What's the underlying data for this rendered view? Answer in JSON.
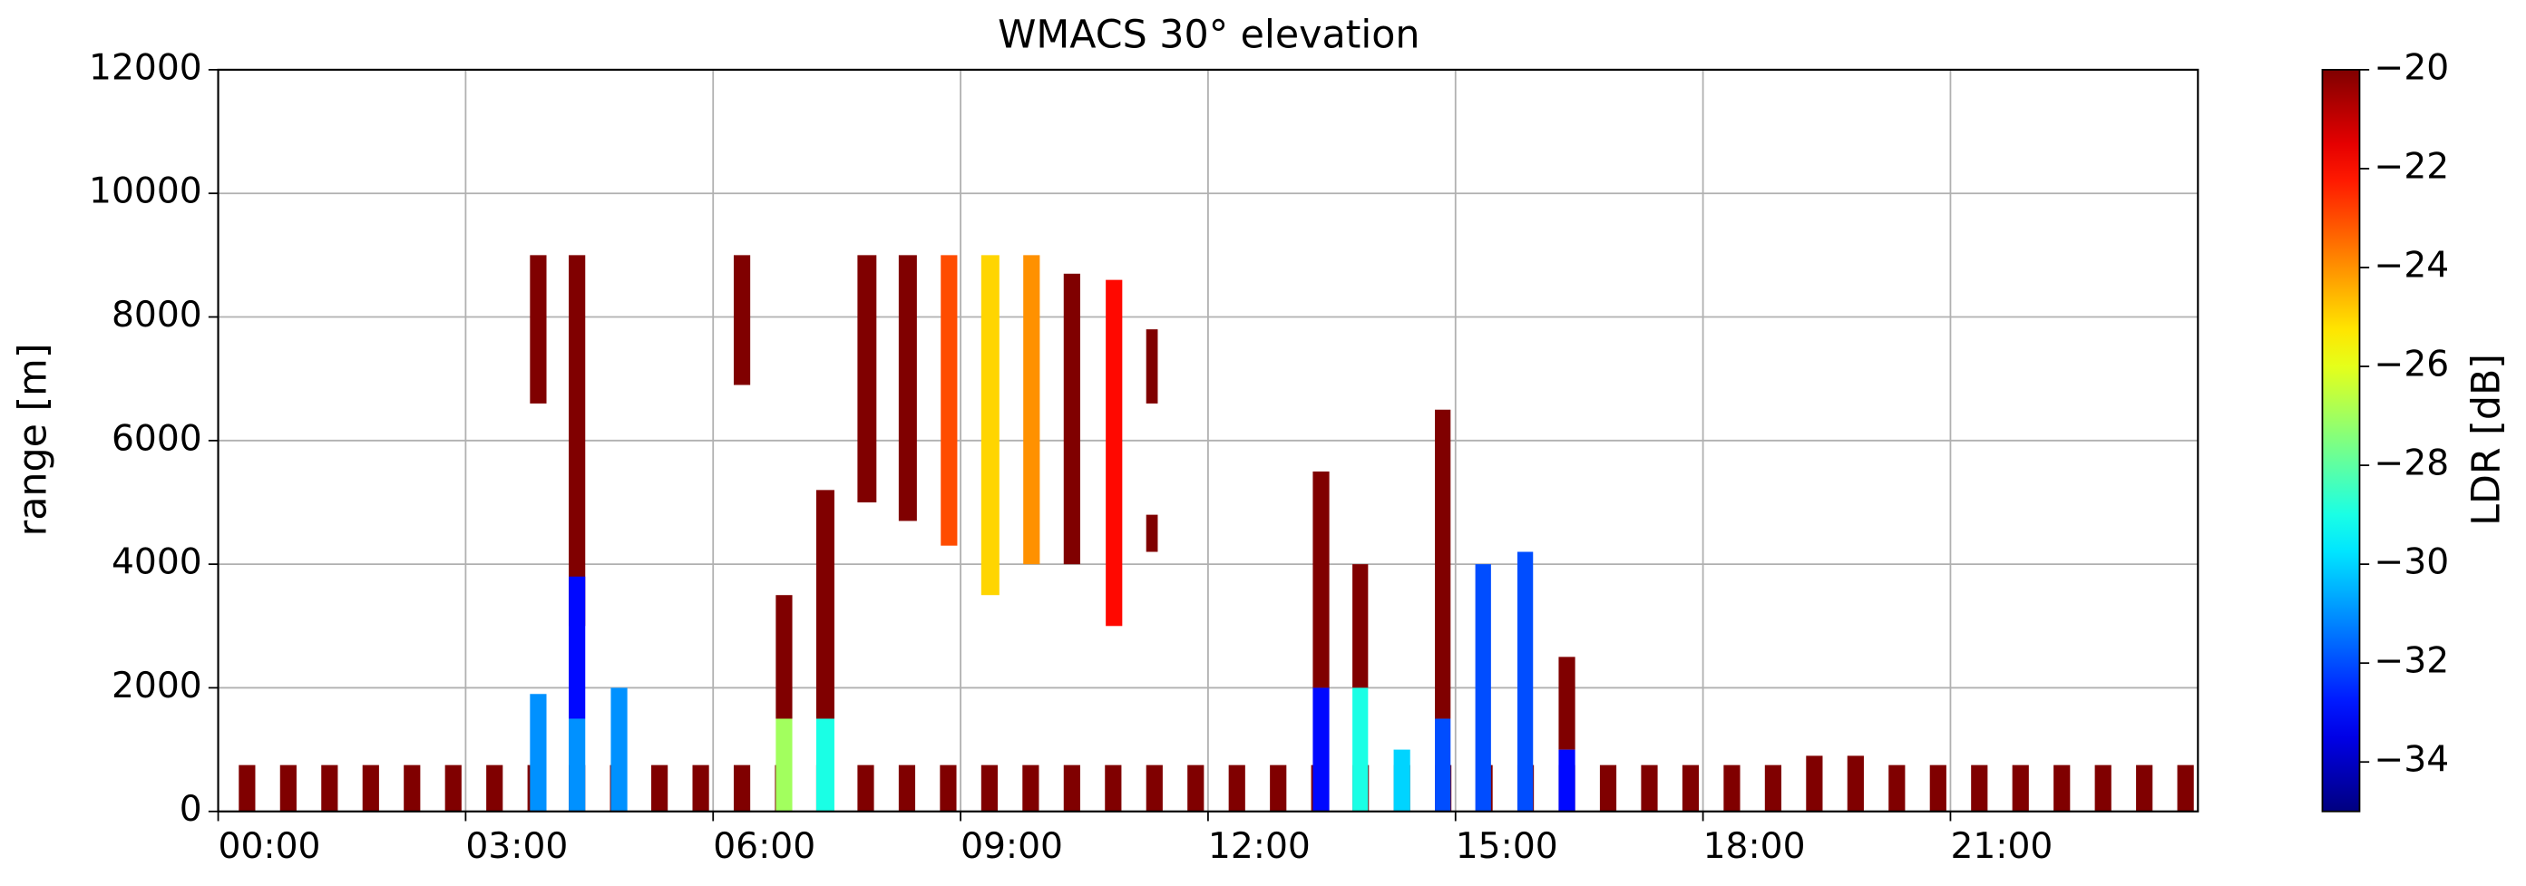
{
  "chart_data": {
    "type": "heatmap",
    "title": "WMACS 30° elevation",
    "y_label": "range [m]",
    "colorbar_label": "LDR [dB]",
    "xlim": [
      0,
      24
    ],
    "ylim": [
      0,
      12000
    ],
    "clim": [
      -35,
      -20
    ],
    "xticks": [
      {
        "value": 0,
        "label": "00:00"
      },
      {
        "value": 3,
        "label": "03:00"
      },
      {
        "value": 6,
        "label": "06:00"
      },
      {
        "value": 9,
        "label": "09:00"
      },
      {
        "value": 12,
        "label": "12:00"
      },
      {
        "value": 15,
        "label": "15:00"
      },
      {
        "value": 18,
        "label": "18:00"
      },
      {
        "value": 21,
        "label": "21:00"
      }
    ],
    "yticks": [
      0,
      2000,
      4000,
      6000,
      8000,
      10000,
      12000
    ],
    "cticks": [
      -20,
      -22,
      -24,
      -26,
      -28,
      -30,
      -32,
      -34
    ],
    "colormap": "jet",
    "grid": true,
    "cells": [
      [
        0.25,
        0.45,
        0,
        750,
        -20
      ],
      [
        0.75,
        0.95,
        0,
        750,
        -20
      ],
      [
        1.25,
        1.45,
        0,
        750,
        -20
      ],
      [
        1.75,
        1.95,
        0,
        750,
        -20
      ],
      [
        2.25,
        2.45,
        0,
        750,
        -20
      ],
      [
        2.75,
        2.95,
        0,
        750,
        -20
      ],
      [
        3.25,
        3.45,
        0,
        750,
        -20
      ],
      [
        3.75,
        3.95,
        0,
        750,
        -20
      ],
      [
        4.25,
        4.45,
        0,
        750,
        -20
      ],
      [
        4.75,
        4.95,
        0,
        750,
        -20
      ],
      [
        5.25,
        5.45,
        0,
        750,
        -20
      ],
      [
        5.75,
        5.95,
        0,
        750,
        -20
      ],
      [
        6.25,
        6.45,
        0,
        750,
        -20
      ],
      [
        6.75,
        6.95,
        0,
        750,
        -20
      ],
      [
        7.25,
        7.45,
        0,
        750,
        -20
      ],
      [
        7.75,
        7.95,
        0,
        750,
        -20
      ],
      [
        8.25,
        8.45,
        0,
        750,
        -20
      ],
      [
        8.75,
        8.95,
        0,
        750,
        -20
      ],
      [
        9.25,
        9.45,
        0,
        750,
        -20
      ],
      [
        9.75,
        9.95,
        0,
        750,
        -20
      ],
      [
        10.25,
        10.45,
        0,
        750,
        -20
      ],
      [
        10.75,
        10.95,
        0,
        750,
        -20
      ],
      [
        11.25,
        11.45,
        0,
        750,
        -20
      ],
      [
        11.75,
        11.95,
        0,
        750,
        -20
      ],
      [
        12.25,
        12.45,
        0,
        750,
        -20
      ],
      [
        12.75,
        12.95,
        0,
        750,
        -20
      ],
      [
        13.25,
        13.45,
        0,
        750,
        -20
      ],
      [
        13.75,
        13.95,
        0,
        750,
        -20
      ],
      [
        14.25,
        14.45,
        0,
        750,
        -20
      ],
      [
        14.75,
        14.95,
        0,
        750,
        -20
      ],
      [
        15.25,
        15.45,
        0,
        750,
        -20
      ],
      [
        15.75,
        15.95,
        0,
        750,
        -20
      ],
      [
        16.25,
        16.45,
        0,
        750,
        -20
      ],
      [
        16.75,
        16.95,
        0,
        750,
        -20
      ],
      [
        17.25,
        17.45,
        0,
        750,
        -20
      ],
      [
        17.75,
        17.95,
        0,
        750,
        -20
      ],
      [
        18.25,
        18.45,
        0,
        750,
        -20
      ],
      [
        18.75,
        18.95,
        0,
        750,
        -20
      ],
      [
        19.25,
        19.45,
        0,
        900,
        -20
      ],
      [
        19.75,
        19.95,
        0,
        900,
        -20
      ],
      [
        20.25,
        20.45,
        0,
        750,
        -20
      ],
      [
        20.75,
        20.95,
        0,
        750,
        -20
      ],
      [
        21.25,
        21.45,
        0,
        750,
        -20
      ],
      [
        21.75,
        21.95,
        0,
        750,
        -20
      ],
      [
        22.25,
        22.45,
        0,
        750,
        -20
      ],
      [
        22.75,
        22.95,
        0,
        750,
        -20
      ],
      [
        23.25,
        23.45,
        0,
        750,
        -20
      ],
      [
        23.75,
        23.95,
        0,
        750,
        -20
      ],
      [
        3.78,
        3.98,
        6600,
        9000,
        -20
      ],
      [
        3.78,
        3.98,
        0,
        1900,
        -31
      ],
      [
        4.25,
        4.45,
        3000,
        9000,
        -20
      ],
      [
        4.25,
        4.45,
        1500,
        3800,
        -33
      ],
      [
        4.25,
        4.45,
        0,
        1500,
        -31
      ],
      [
        4.76,
        4.96,
        0,
        2000,
        -31
      ],
      [
        6.25,
        6.45,
        6900,
        9000,
        -20
      ],
      [
        6.76,
        6.96,
        1500,
        3500,
        -20
      ],
      [
        6.76,
        6.96,
        0,
        1500,
        -27
      ],
      [
        7.25,
        7.47,
        1500,
        5200,
        -20
      ],
      [
        7.25,
        7.47,
        0,
        1500,
        -29
      ],
      [
        7.75,
        7.98,
        5000,
        9000,
        -20
      ],
      [
        8.25,
        8.47,
        4700,
        9000,
        -20
      ],
      [
        8.76,
        8.96,
        4300,
        9000,
        -23
      ],
      [
        9.25,
        9.47,
        3500,
        9000,
        -25
      ],
      [
        9.76,
        9.96,
        4000,
        9000,
        -24
      ],
      [
        10.25,
        10.45,
        4000,
        8700,
        -20
      ],
      [
        10.76,
        10.96,
        3000,
        8600,
        -22
      ],
      [
        11.25,
        11.39,
        4200,
        4800,
        -20
      ],
      [
        11.25,
        11.39,
        6600,
        7800,
        -20
      ],
      [
        13.27,
        13.47,
        2000,
        5500,
        -20
      ],
      [
        13.27,
        13.47,
        0,
        2000,
        -33
      ],
      [
        13.75,
        13.94,
        2000,
        4000,
        -20
      ],
      [
        13.75,
        13.94,
        0,
        2000,
        -29
      ],
      [
        14.25,
        14.45,
        0,
        1000,
        -30
      ],
      [
        14.75,
        14.94,
        1500,
        6500,
        -20
      ],
      [
        14.75,
        14.94,
        0,
        1500,
        -32
      ],
      [
        15.24,
        15.43,
        0,
        4000,
        -32
      ],
      [
        15.75,
        15.94,
        0,
        4200,
        -32
      ],
      [
        16.25,
        16.45,
        1000,
        2500,
        -20
      ],
      [
        16.25,
        16.45,
        0,
        1000,
        -33
      ]
    ]
  }
}
